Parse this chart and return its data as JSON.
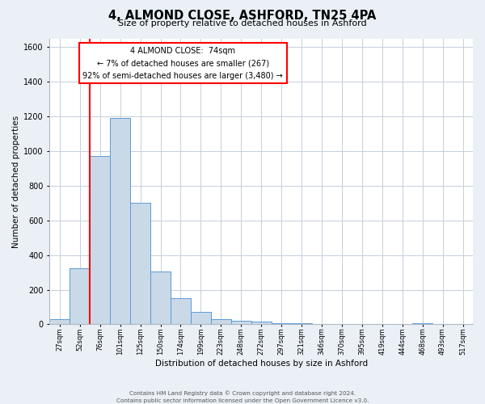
{
  "title": "4, ALMOND CLOSE, ASHFORD, TN25 4PA",
  "subtitle": "Size of property relative to detached houses in Ashford",
  "xlabel": "Distribution of detached houses by size in Ashford",
  "ylabel": "Number of detached properties",
  "bin_labels": [
    "27sqm",
    "52sqm",
    "76sqm",
    "101sqm",
    "125sqm",
    "150sqm",
    "174sqm",
    "199sqm",
    "223sqm",
    "248sqm",
    "272sqm",
    "297sqm",
    "321sqm",
    "346sqm",
    "370sqm",
    "395sqm",
    "419sqm",
    "444sqm",
    "468sqm",
    "493sqm",
    "517sqm"
  ],
  "bar_heights": [
    30,
    325,
    970,
    1190,
    700,
    305,
    150,
    70,
    30,
    20,
    15,
    8,
    5,
    3,
    2,
    0,
    0,
    0,
    5,
    0,
    3
  ],
  "bar_color": "#c9d9e8",
  "bar_edge_color": "#5b9bd5",
  "annotation_line_color": "red",
  "annotation_box_line1": "4 ALMOND CLOSE:  74sqm",
  "annotation_box_line2": "← 7% of detached houses are smaller (267)",
  "annotation_box_line3": "92% of semi-detached houses are larger (3,480) →",
  "ylim": [
    0,
    1650
  ],
  "yticks": [
    0,
    200,
    400,
    600,
    800,
    1000,
    1200,
    1400,
    1600
  ],
  "footer_line1": "Contains HM Land Registry data © Crown copyright and database right 2024.",
  "footer_line2": "Contains public sector information licensed under the Open Government Licence v3.0.",
  "fig_bg_color": "#eaf0f6",
  "plot_bg_color": "#ffffff",
  "grid_color": "#c5cfdb"
}
